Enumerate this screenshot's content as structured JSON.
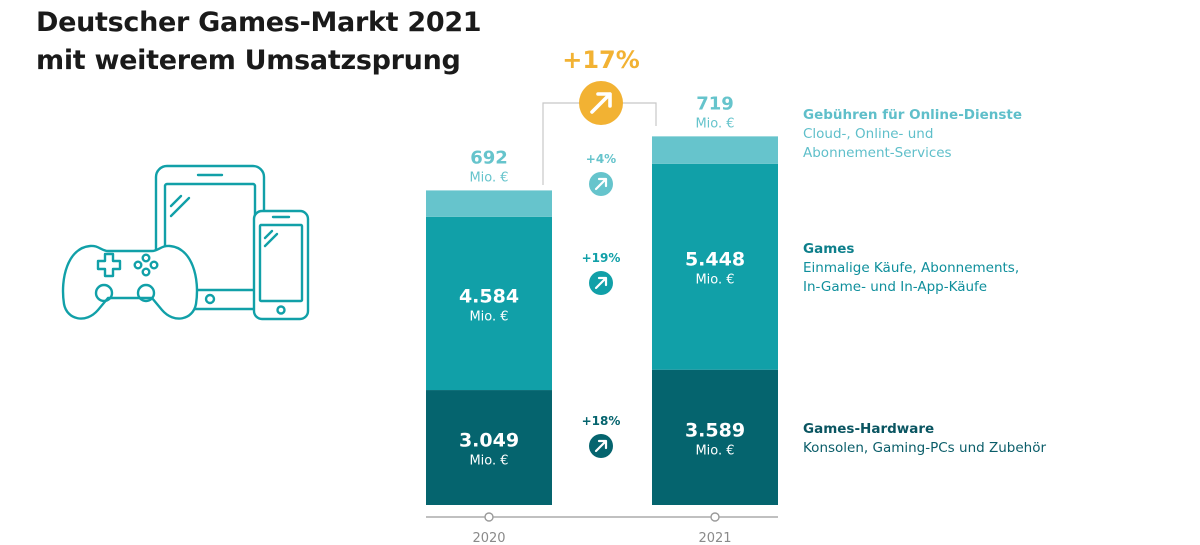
{
  "title": {
    "line1": "Deutscher Games-Markt 2021",
    "line2": "mit weiterem Umsatzsprung"
  },
  "colors": {
    "online": "#66c4cc",
    "games": "#11a0a8",
    "hardware": "#05646e",
    "accent": "#f2b233",
    "axis": "#9a9a9a"
  },
  "chart_data": {
    "type": "bar",
    "stacked": true,
    "categories": [
      "2020",
      "2021"
    ],
    "unit": "Mio. €",
    "series": [
      {
        "key": "hardware",
        "name": "Games-Hardware",
        "values": [
          3049,
          3589
        ],
        "labels": [
          "3.049",
          "3.589"
        ],
        "growth": "+18%",
        "color": "#05646e"
      },
      {
        "key": "games",
        "name": "Games",
        "values": [
          4584,
          5448
        ],
        "labels": [
          "4.584",
          "5.448"
        ],
        "growth": "+19%",
        "color": "#11a0a8"
      },
      {
        "key": "online",
        "name": "Gebühren für Online-Dienste",
        "values": [
          692,
          719
        ],
        "labels": [
          "692",
          "719"
        ],
        "growth": "+4%",
        "color": "#66c4cc"
      }
    ],
    "total_growth": "+17%",
    "legend_placement": "right"
  },
  "legend": {
    "online": {
      "title": "Gebühren für Online-Dienste",
      "line1": "Cloud-, Online- und",
      "line2": "Abonnement-Services"
    },
    "games": {
      "title": "Games",
      "line1": "Einmalige Käufe, Abonnements,",
      "line2": "In-Game- und In-App-Käufe"
    },
    "hardware": {
      "title": "Games-Hardware",
      "line1": "Konsolen, Gaming-PCs und Zubehör"
    }
  },
  "icons": {
    "illustration": "gaming-devices-icon",
    "growth": "arrow-up-right-icon"
  }
}
